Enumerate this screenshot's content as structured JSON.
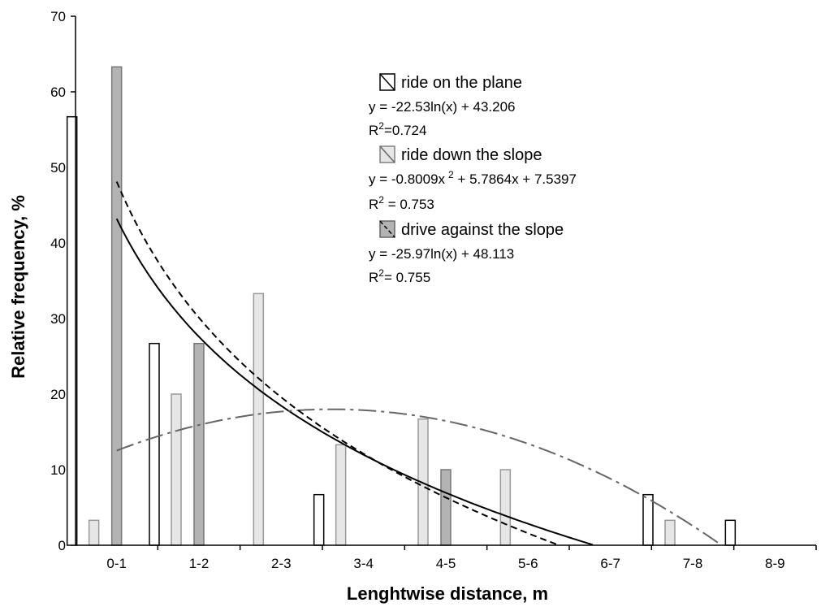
{
  "chart_data": {
    "type": "bar",
    "xlabel": "Lenghtwise distance, m",
    "ylabel": "Relative frequency, %",
    "ylim": [
      0,
      70
    ],
    "yticks": [
      "0",
      "10",
      "20",
      "30",
      "40",
      "50",
      "60",
      "70"
    ],
    "categories": [
      "0-1",
      "1-2",
      "2-3",
      "3-4",
      "4-5",
      "5-6",
      "6-7",
      "7-8",
      "8-9"
    ],
    "series": [
      {
        "name": "ride on the plane",
        "fill": "#ffffff",
        "values": [
          56.7,
          26.7,
          0,
          6.7,
          0,
          0,
          0,
          6.7,
          3.3
        ],
        "equation": "y = -22.53ln(x) + 43.206",
        "r2_label": "R",
        "r2_sup": "2",
        "r2_value": "=0.724"
      },
      {
        "name": "ride down the slope",
        "fill": "#e6e6e6",
        "values": [
          3.3,
          20.0,
          33.3,
          13.3,
          16.7,
          10.0,
          0,
          3.3,
          0
        ],
        "equation_pre": "y = -0.8009x",
        "equation_sup": "2",
        "equation_post": " + 5.7864x + 7.5397",
        "r2_label": "R",
        "r2_sup": "2",
        "r2_value": " = 0.753"
      },
      {
        "name": "drive against the slope",
        "fill": "#b3b3b3",
        "values": [
          63.3,
          26.7,
          0,
          0,
          10.0,
          0,
          0,
          0,
          0
        ],
        "equation": "y = -25.97ln(x) + 48.113",
        "r2_label": "R",
        "r2_sup": "2",
        "r2_value": "= 0.755"
      }
    ],
    "trendlines": [
      {
        "series": "ride on the plane",
        "kind": "log",
        "a": -22.53,
        "b": 43.206,
        "style": "solid",
        "color": "#000000"
      },
      {
        "series": "ride down the slope",
        "kind": "poly2",
        "a": -0.8009,
        "b": 5.7864,
        "c": 7.5397,
        "style": "dashdot",
        "color": "#666666"
      },
      {
        "series": "drive against the slope",
        "kind": "log",
        "a": -25.97,
        "b": 48.113,
        "style": "dashed",
        "color": "#000000"
      }
    ],
    "legend_position": "top-right",
    "grid": false
  }
}
